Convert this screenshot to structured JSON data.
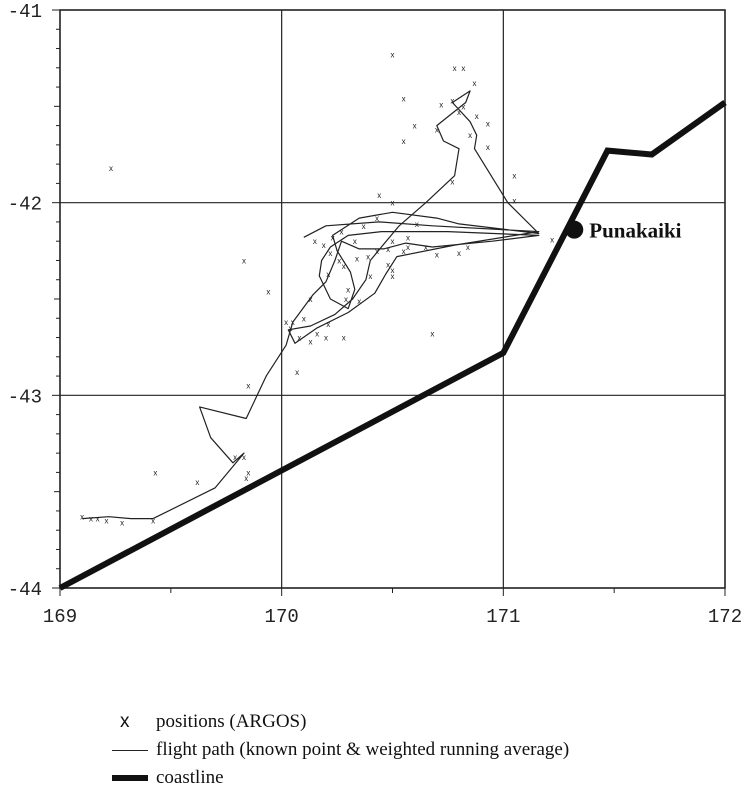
{
  "chart_data": {
    "type": "scatter",
    "title": "",
    "xlabel": "",
    "ylabel": "",
    "xlim": [
      169,
      172
    ],
    "ylim": [
      -44,
      -41
    ],
    "x_ticks": [
      "169",
      "170",
      "171",
      "172"
    ],
    "y_ticks": [
      "-41",
      "-42",
      "-43",
      "-44"
    ],
    "grid": true,
    "series": [
      {
        "name": "positions (ARGOS)",
        "marker": "x",
        "points": [
          [
            169.23,
            -41.82
          ],
          [
            170.5,
            -41.23
          ],
          [
            170.82,
            -41.3
          ],
          [
            170.78,
            -41.3
          ],
          [
            170.87,
            -41.38
          ],
          [
            170.55,
            -41.46
          ],
          [
            170.72,
            -41.49
          ],
          [
            170.77,
            -41.47
          ],
          [
            170.82,
            -41.5
          ],
          [
            170.8,
            -41.53
          ],
          [
            170.88,
            -41.55
          ],
          [
            170.6,
            -41.6
          ],
          [
            170.7,
            -41.62
          ],
          [
            170.93,
            -41.59
          ],
          [
            170.85,
            -41.65
          ],
          [
            170.55,
            -41.68
          ],
          [
            170.93,
            -41.71
          ],
          [
            170.77,
            -41.89
          ],
          [
            171.05,
            -41.86
          ],
          [
            170.44,
            -41.96
          ],
          [
            170.5,
            -42.0
          ],
          [
            171.05,
            -41.99
          ],
          [
            170.61,
            -42.11
          ],
          [
            171.22,
            -42.19
          ],
          [
            170.43,
            -42.08
          ],
          [
            170.37,
            -42.12
          ],
          [
            170.27,
            -42.15
          ],
          [
            170.23,
            -42.18
          ],
          [
            170.33,
            -42.2
          ],
          [
            170.15,
            -42.2
          ],
          [
            170.19,
            -42.22
          ],
          [
            170.5,
            -42.2
          ],
          [
            170.57,
            -42.18
          ],
          [
            170.48,
            -42.24
          ],
          [
            170.22,
            -42.26
          ],
          [
            170.26,
            -42.3
          ],
          [
            170.28,
            -42.33
          ],
          [
            170.34,
            -42.29
          ],
          [
            170.39,
            -42.28
          ],
          [
            170.43,
            -42.25
          ],
          [
            170.55,
            -42.25
          ],
          [
            170.57,
            -42.23
          ],
          [
            170.65,
            -42.23
          ],
          [
            170.7,
            -42.27
          ],
          [
            170.8,
            -42.26
          ],
          [
            170.84,
            -42.23
          ],
          [
            170.48,
            -42.32
          ],
          [
            170.5,
            -42.35
          ],
          [
            170.5,
            -42.38
          ],
          [
            170.4,
            -42.38
          ],
          [
            170.21,
            -42.37
          ],
          [
            170.3,
            -42.45
          ],
          [
            170.29,
            -42.5
          ],
          [
            170.35,
            -42.51
          ],
          [
            169.83,
            -42.3
          ],
          [
            169.94,
            -42.46
          ],
          [
            170.13,
            -42.5
          ],
          [
            170.02,
            -42.62
          ],
          [
            170.05,
            -42.62
          ],
          [
            170.1,
            -42.6
          ],
          [
            170.21,
            -42.63
          ],
          [
            170.16,
            -42.68
          ],
          [
            170.04,
            -42.65
          ],
          [
            170.08,
            -42.7
          ],
          [
            170.13,
            -42.72
          ],
          [
            170.2,
            -42.7
          ],
          [
            170.28,
            -42.7
          ],
          [
            170.68,
            -42.68
          ],
          [
            170.07,
            -42.88
          ],
          [
            169.85,
            -42.95
          ],
          [
            169.79,
            -43.32
          ],
          [
            169.83,
            -43.32
          ],
          [
            169.85,
            -43.4
          ],
          [
            169.84,
            -43.43
          ],
          [
            169.43,
            -43.4
          ],
          [
            169.62,
            -43.45
          ],
          [
            169.1,
            -43.63
          ],
          [
            169.14,
            -43.64
          ],
          [
            169.17,
            -43.64
          ],
          [
            169.21,
            -43.65
          ],
          [
            169.28,
            -43.66
          ],
          [
            169.42,
            -43.65
          ]
        ]
      },
      {
        "name": "flight path (known point & weighted running average)",
        "marker": "line",
        "points": [
          [
            169.1,
            -43.64
          ],
          [
            169.22,
            -43.63
          ],
          [
            169.32,
            -43.64
          ],
          [
            169.42,
            -43.64
          ],
          [
            169.7,
            -43.48
          ],
          [
            169.83,
            -43.3
          ],
          [
            169.78,
            -43.35
          ],
          [
            169.68,
            -43.22
          ],
          [
            169.63,
            -43.06
          ],
          [
            169.84,
            -43.12
          ],
          [
            169.93,
            -42.9
          ],
          [
            170.02,
            -42.74
          ],
          [
            170.05,
            -42.62
          ],
          [
            170.14,
            -42.48
          ],
          [
            170.2,
            -42.41
          ],
          [
            170.24,
            -42.3
          ],
          [
            170.27,
            -42.2
          ],
          [
            170.35,
            -42.24
          ],
          [
            170.46,
            -42.24
          ],
          [
            170.56,
            -42.21
          ],
          [
            170.68,
            -42.23
          ],
          [
            170.95,
            -42.2
          ],
          [
            171.16,
            -42.17
          ],
          [
            170.75,
            -42.15
          ],
          [
            170.45,
            -42.15
          ],
          [
            170.3,
            -42.17
          ],
          [
            170.22,
            -42.23
          ],
          [
            170.18,
            -42.3
          ],
          [
            170.17,
            -42.38
          ],
          [
            170.22,
            -42.5
          ],
          [
            170.3,
            -42.55
          ],
          [
            170.33,
            -42.45
          ],
          [
            170.31,
            -42.36
          ],
          [
            170.25,
            -42.25
          ],
          [
            170.23,
            -42.17
          ],
          [
            170.35,
            -42.08
          ],
          [
            170.5,
            -42.05
          ],
          [
            170.7,
            -42.08
          ],
          [
            170.8,
            -42.11
          ],
          [
            171.16,
            -42.16
          ],
          [
            171.02,
            -42.0
          ],
          [
            170.87,
            -41.72
          ],
          [
            170.88,
            -41.65
          ],
          [
            170.85,
            -41.58
          ],
          [
            170.77,
            -41.48
          ],
          [
            170.85,
            -41.42
          ],
          [
            170.83,
            -41.48
          ],
          [
            170.7,
            -41.6
          ],
          [
            170.73,
            -41.68
          ],
          [
            170.8,
            -41.72
          ],
          [
            170.78,
            -41.86
          ],
          [
            170.65,
            -42.0
          ],
          [
            170.53,
            -42.12
          ],
          [
            170.45,
            -42.23
          ],
          [
            170.4,
            -42.3
          ],
          [
            170.38,
            -42.4
          ],
          [
            170.32,
            -42.5
          ],
          [
            170.24,
            -42.58
          ],
          [
            170.13,
            -42.64
          ],
          [
            170.03,
            -42.66
          ],
          [
            170.06,
            -42.73
          ],
          [
            170.16,
            -42.65
          ],
          [
            170.3,
            -42.57
          ],
          [
            170.42,
            -42.47
          ],
          [
            170.47,
            -42.37
          ],
          [
            170.52,
            -42.28
          ],
          [
            170.78,
            -42.22
          ],
          [
            171.16,
            -42.15
          ],
          [
            170.68,
            -42.12
          ],
          [
            170.44,
            -42.1
          ],
          [
            170.2,
            -42.12
          ],
          [
            170.1,
            -42.18
          ]
        ]
      },
      {
        "name": "coastline",
        "marker": "thick-line",
        "points": [
          [
            169.0,
            -44.0
          ],
          [
            171.0,
            -42.78
          ],
          [
            171.47,
            -41.73
          ],
          [
            171.67,
            -41.75
          ],
          [
            172.0,
            -41.48
          ]
        ]
      }
    ],
    "annotations": [
      {
        "text": "Punakaiki",
        "x": 171.32,
        "y": -42.14
      }
    ],
    "legend_placement": "bottom"
  },
  "legend": {
    "positions_symbol": "x",
    "positions_label": "positions (ARGOS)",
    "flight_path_label": "flight path (known point & weighted running average)",
    "coastline_label": "coastline"
  },
  "colors": {
    "ink": "#222222",
    "coast": "#111111"
  }
}
